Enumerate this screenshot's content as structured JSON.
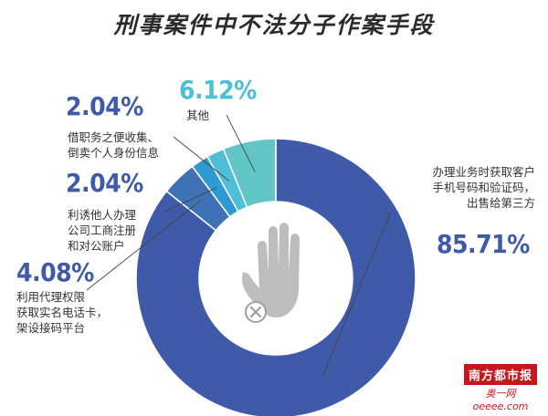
{
  "title": "刑事案件中不法分子作案手段",
  "chart_data": {
    "type": "pie",
    "style": "donut",
    "title": "刑事案件中不法分子作案手段",
    "slices": [
      {
        "label": "办理业务时获取客户\n手机号码和验证码，\n出售给第三方",
        "value": 85.71,
        "display": "85.71%",
        "color": "#3f5aa8"
      },
      {
        "label": "利用代理权限\n获取实名电话卡，\n架设接码平台",
        "value": 4.08,
        "display": "4.08%",
        "color": "#3e72b4"
      },
      {
        "label": "利诱他人办理\n公司工商注册\n和对公账户",
        "value": 2.04,
        "display": "2.04%",
        "color": "#2f9ad1"
      },
      {
        "label": "借职务之便收集、\n倒卖个人身份信息",
        "value": 2.04,
        "display": "2.04%",
        "color": "#4fbfd8"
      },
      {
        "label": "其他",
        "value": 6.12,
        "display": "6.12%",
        "color": "#62c6c7"
      }
    ]
  },
  "watermark": {
    "logo": "南方都市报",
    "site": "奥一网oeeee.com"
  }
}
